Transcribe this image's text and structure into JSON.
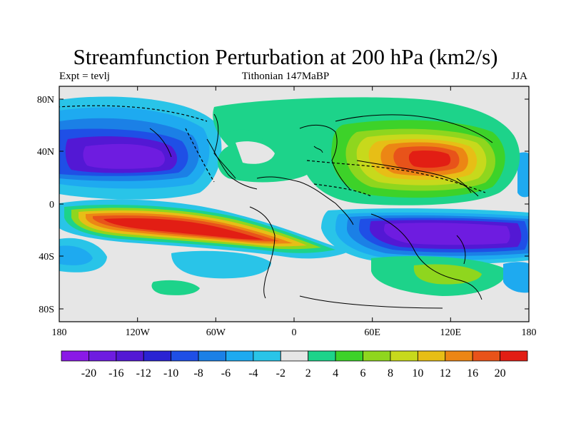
{
  "title": "Streamfunction Perturbation at 200 hPa (km2/s)",
  "subtitle_left": "Expt = tevlj",
  "subtitle_center": "Tithonian 147MaBP",
  "subtitle_right": "JJA",
  "axes": {
    "x_ticks": [
      "180",
      "120W",
      "60W",
      "0",
      "60E",
      "120E",
      "180"
    ],
    "y_ticks": [
      "80N",
      "40N",
      "0",
      "40S",
      "80S"
    ]
  },
  "colorbar": {
    "labels": [
      "-20",
      "-16",
      "-12",
      "-10",
      "-8",
      "-6",
      "-4",
      "-2",
      "2",
      "4",
      "6",
      "8",
      "10",
      "12",
      "16",
      "20"
    ],
    "colors": [
      "#8a19e6",
      "#6e1ce0",
      "#5318d4",
      "#2a23d3",
      "#1f4fe6",
      "#1b80e6",
      "#1eaaf0",
      "#29c4e8",
      "#e6e6e6",
      "#1dd38a",
      "#3dd229",
      "#8fd61e",
      "#c7d91c",
      "#e7be16",
      "#ec8614",
      "#e8531a",
      "#e21e14"
    ]
  }
}
